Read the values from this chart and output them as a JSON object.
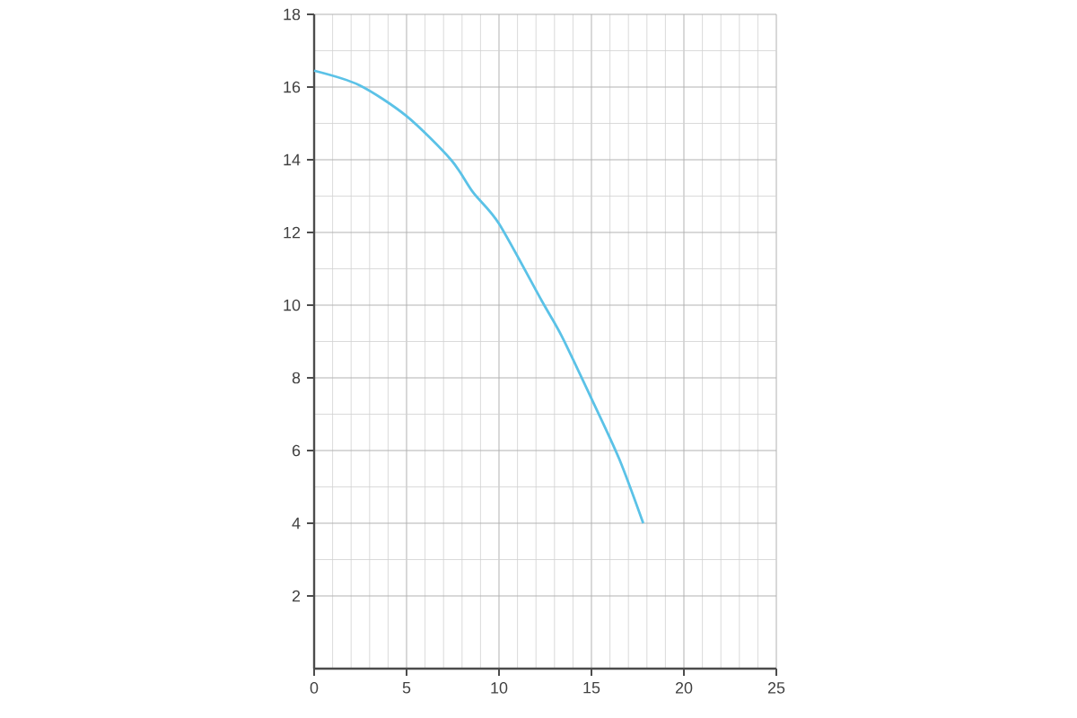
{
  "chart_data": {
    "type": "line",
    "color": "#5bc2e7",
    "x": [
      0,
      2.45,
      5,
      7.4,
      8.6,
      10,
      12.3,
      13.4,
      15,
      16.5,
      17.8
    ],
    "values": [
      16.45,
      16.05,
      15.2,
      14.0,
      13.1,
      12.24,
      10.13,
      9.14,
      7.43,
      5.77,
      4.0
    ],
    "xlim": [
      0,
      25
    ],
    "xticks": [
      0,
      5,
      10,
      15,
      20,
      25
    ],
    "ylim": [
      0,
      18
    ],
    "yticks": [
      2,
      4,
      6,
      8,
      10,
      12,
      14,
      16,
      18
    ],
    "grid": true,
    "marker": "none",
    "line_style": "solid"
  }
}
